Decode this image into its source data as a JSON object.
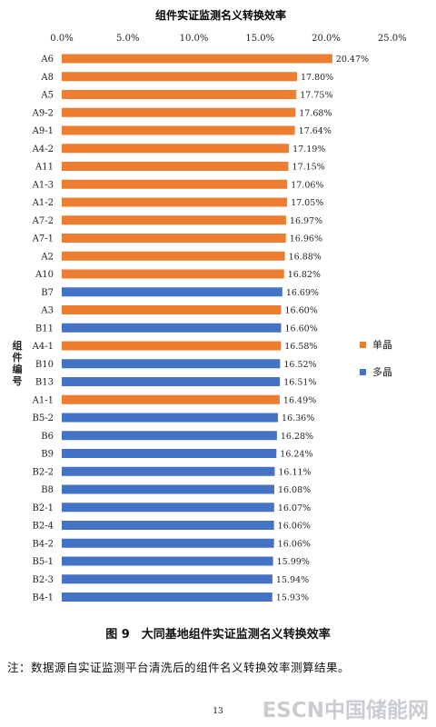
{
  "chart_data": {
    "type": "bar",
    "orientation": "horizontal",
    "title": "组件实证监测名义转换效率",
    "ylabel": "组件编号",
    "xlim": [
      0,
      25
    ],
    "x_ticks": [
      "0.0%",
      "5.0%",
      "10.0%",
      "15.0%",
      "20.0%",
      "25.0%"
    ],
    "legend_position": "right",
    "series": [
      {
        "name": "单晶",
        "color": "#ED7D31"
      },
      {
        "name": "多晶",
        "color": "#4472C4"
      }
    ],
    "categories": [
      "A6",
      "A8",
      "A5",
      "A9-2",
      "A9-1",
      "A4-2",
      "A11",
      "A1-3",
      "A1-2",
      "A7-2",
      "A7-1",
      "A2",
      "A10",
      "B7",
      "A3",
      "B11",
      "A4-1",
      "B10",
      "B13",
      "A1-1",
      "B5-2",
      "B6",
      "B9",
      "B2-2",
      "B8",
      "B2-1",
      "B2-4",
      "B4-2",
      "B5-1",
      "B2-3",
      "B4-1"
    ],
    "values": [
      20.47,
      17.8,
      17.75,
      17.68,
      17.64,
      17.19,
      17.15,
      17.06,
      17.05,
      16.97,
      16.96,
      16.88,
      16.82,
      16.69,
      16.6,
      16.6,
      16.58,
      16.52,
      16.51,
      16.49,
      16.36,
      16.28,
      16.24,
      16.11,
      16.08,
      16.07,
      16.06,
      16.06,
      15.99,
      15.94,
      15.93
    ],
    "value_labels": [
      "20.47%",
      "17.80%",
      "17.75%",
      "17.68%",
      "17.64%",
      "17.19%",
      "17.15%",
      "17.06%",
      "17.05%",
      "16.97%",
      "16.96%",
      "16.88%",
      "16.82%",
      "16.69%",
      "16.60%",
      "16.60%",
      "16.58%",
      "16.52%",
      "16.51%",
      "16.49%",
      "16.36%",
      "16.28%",
      "16.24%",
      "16.11%",
      "16.08%",
      "16.07%",
      "16.06%",
      "16.06%",
      "15.99%",
      "15.94%",
      "15.93%"
    ],
    "series_index": [
      0,
      0,
      0,
      0,
      0,
      0,
      0,
      0,
      0,
      0,
      0,
      0,
      0,
      1,
      0,
      1,
      0,
      1,
      1,
      0,
      1,
      1,
      1,
      1,
      1,
      1,
      1,
      1,
      1,
      1,
      1
    ]
  },
  "caption": "图 9　大同基地组件实证监测名义转换效率",
  "note": "注：数据源自实证监测平台清洗后的组件名义转换效率测算结果。",
  "page_number": "13",
  "watermark": "ESCN中国储能网"
}
